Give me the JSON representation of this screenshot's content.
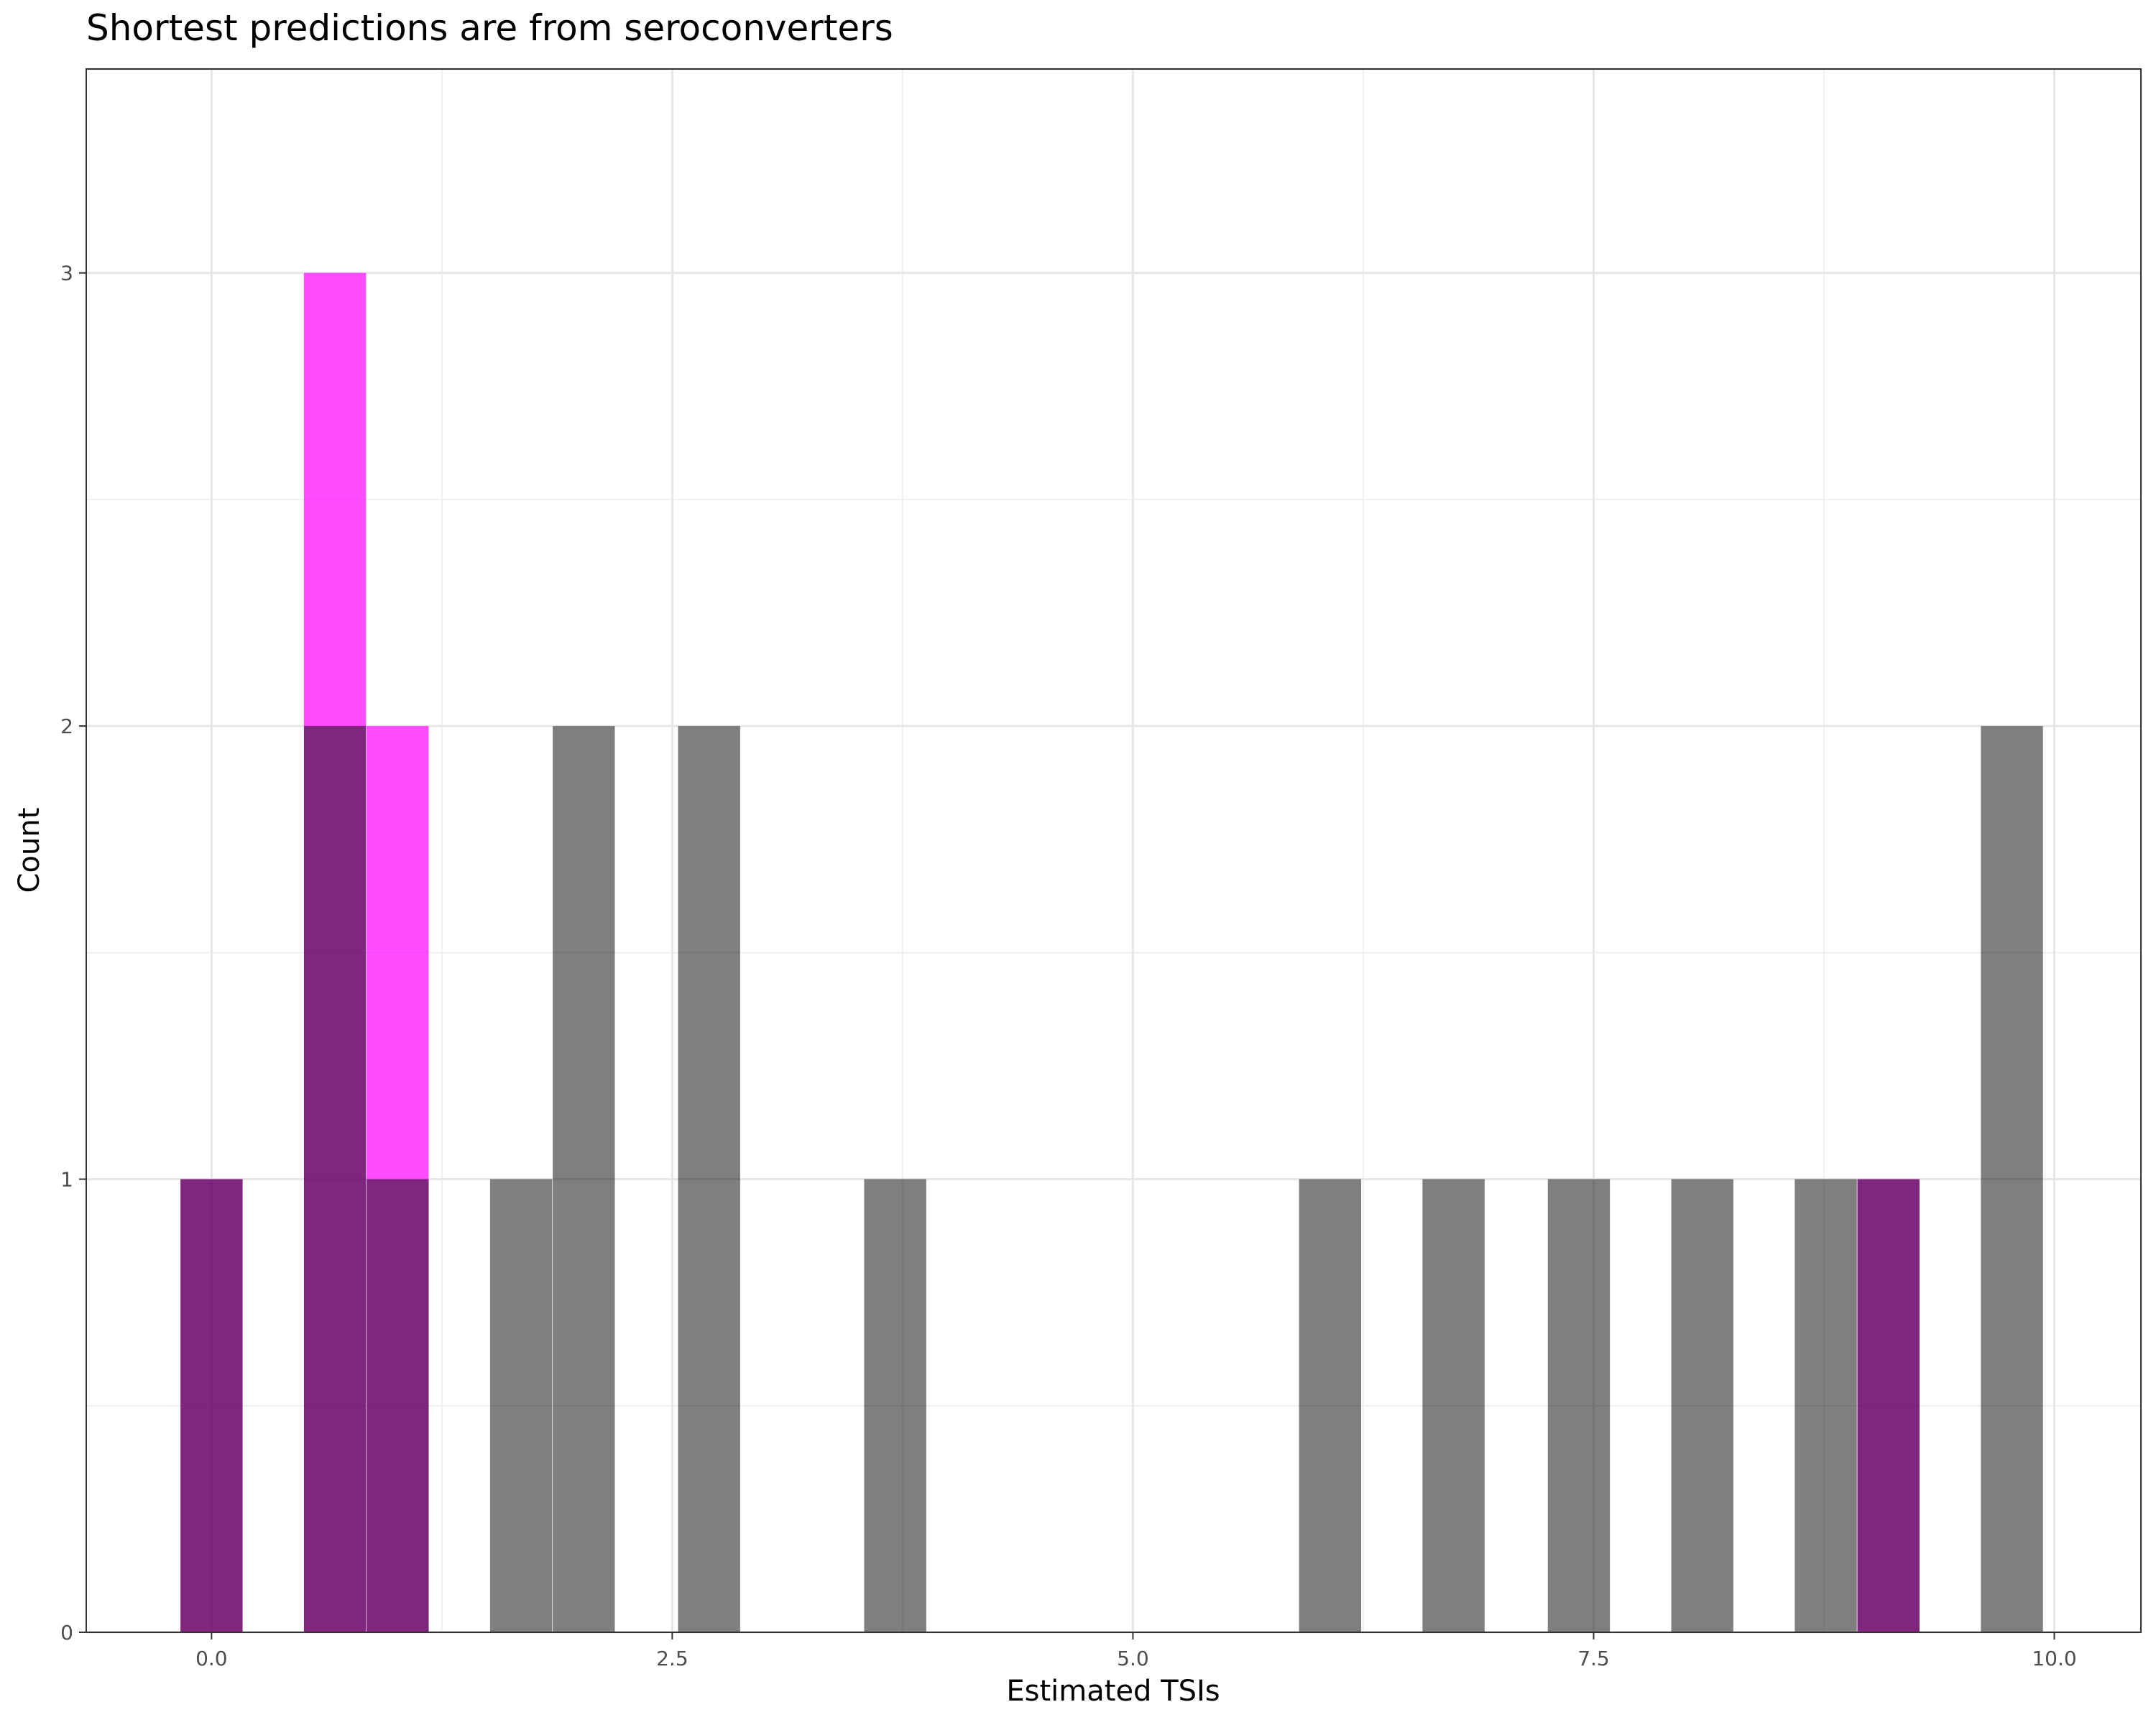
{
  "chart_data": {
    "type": "bar",
    "title": "Shortest predictions are from seroconverters",
    "xlabel": "Estimated TSIs",
    "ylabel": "Count",
    "xlim": [
      -0.68,
      10.47
    ],
    "ylim": [
      0,
      3.45
    ],
    "xticks": [
      0,
      2.5,
      5,
      7.5,
      10
    ],
    "xtick_labels": [
      "0.0",
      "2.5",
      "5.0",
      "7.5",
      "10.0"
    ],
    "yticks": [
      0,
      1,
      2,
      3
    ],
    "ytick_labels": [
      "0",
      "1",
      "2",
      "3"
    ],
    "bin_width": 0.337,
    "grid": true,
    "series": [
      {
        "color": "#ff00ff",
        "opacity": 0.7,
        "bins": [
          {
            "x": 0.0,
            "count": 1
          },
          {
            "x": 0.67,
            "count": 3
          },
          {
            "x": 1.01,
            "count": 2
          },
          {
            "x": 9.1,
            "count": 1
          }
        ]
      },
      {
        "color": "#000000",
        "opacity": 0.5,
        "bins": [
          {
            "x": 0.0,
            "count": 1
          },
          {
            "x": 0.67,
            "count": 2
          },
          {
            "x": 1.01,
            "count": 1
          },
          {
            "x": 1.68,
            "count": 1
          },
          {
            "x": 2.02,
            "count": 2
          },
          {
            "x": 2.7,
            "count": 2
          },
          {
            "x": 3.71,
            "count": 1
          },
          {
            "x": 6.07,
            "count": 1
          },
          {
            "x": 6.74,
            "count": 1
          },
          {
            "x": 7.42,
            "count": 1
          },
          {
            "x": 8.09,
            "count": 1
          },
          {
            "x": 8.76,
            "count": 1
          },
          {
            "x": 9.1,
            "count": 1
          },
          {
            "x": 9.77,
            "count": 2
          }
        ]
      }
    ]
  }
}
